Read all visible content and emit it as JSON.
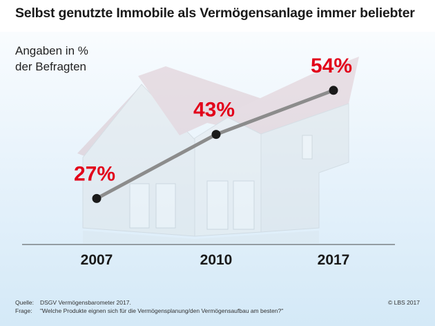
{
  "title": "Selbst genutzte Immobile als Vermögensanlage immer beliebter",
  "subtitle_line1": "Angaben in %",
  "subtitle_line2": "der Befragten",
  "chart_data": {
    "type": "line",
    "title": "Selbst genutzte Immobile als Vermögensanlage immer beliebter",
    "ylabel": "Angaben in % der Befragten",
    "categories": [
      "2007",
      "2010",
      "2017"
    ],
    "values": [
      27,
      43,
      54
    ],
    "value_labels": [
      "27%",
      "43%",
      "54%"
    ],
    "ylim": [
      20,
      60
    ],
    "grid": false,
    "colors": {
      "line": "#8c8c8c",
      "point": "#1a1a1a",
      "label": "#e2001a"
    }
  },
  "footer": {
    "source_label": "Quelle:",
    "source_text": "DSGV Vermögensbarometer 2017.",
    "question_label": "Frage:",
    "question_text": "\"Welche Produkte eignen sich für die Vermögensplanung/den Vermögensaufbau am besten?\"",
    "copyright": "© LBS 2017"
  }
}
